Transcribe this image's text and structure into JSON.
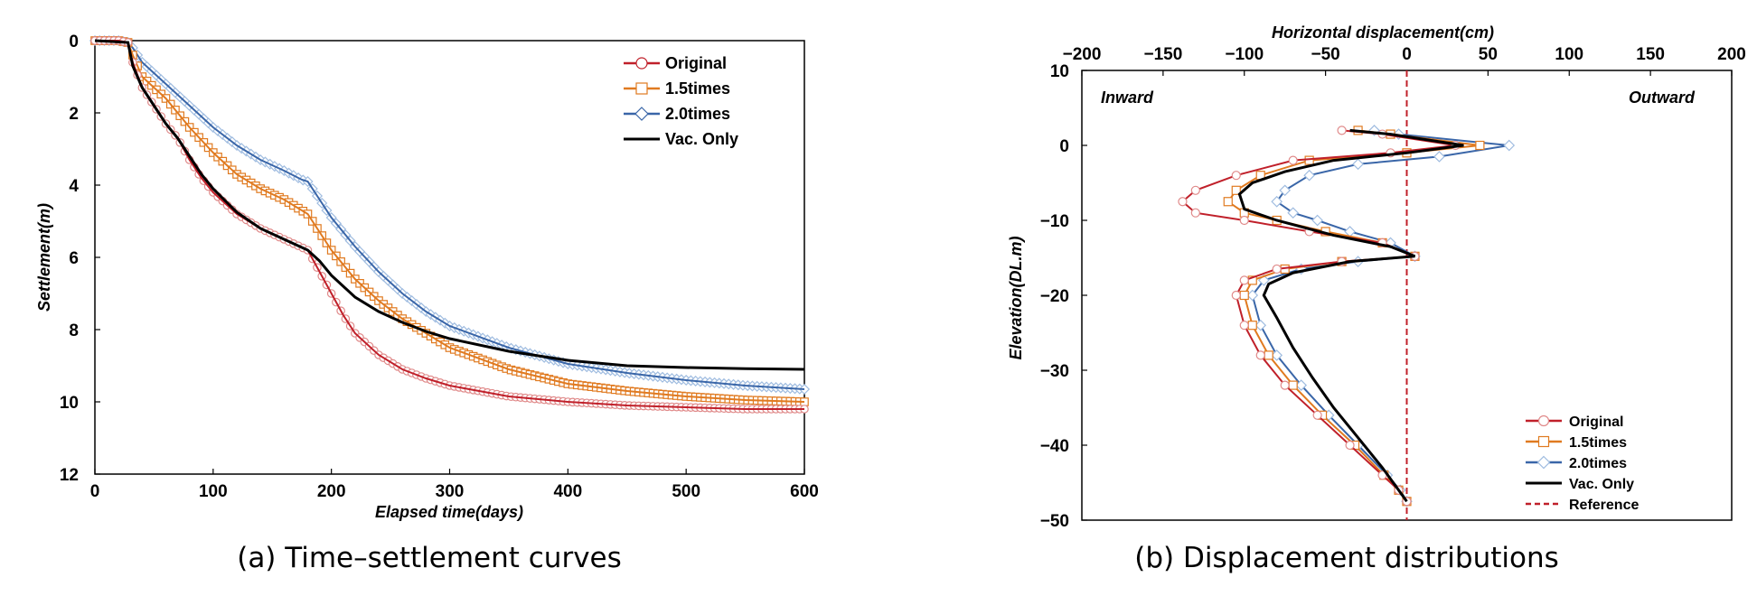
{
  "colors": {
    "original": "#c0202a",
    "original_marker": "#e08a8a",
    "times15": "#e07a20",
    "times20": "#3a66a8",
    "times20_marker": "#9fbce0",
    "vac_only": "#000000",
    "reference": "#c0202a",
    "note": "#e02020"
  },
  "captions": {
    "a": "(a) Time–settlement curves",
    "b": "(b) Displacement distributions"
  },
  "chart_data": [
    {
      "type": "line",
      "xlabel": "Elapsed time(days)",
      "ylabel": "Settlement(m)",
      "xlim": [
        0,
        600
      ],
      "ylim": [
        0,
        12
      ],
      "y_inverted": true,
      "xticks": [
        "0",
        "100",
        "200",
        "300",
        "400",
        "500",
        "600"
      ],
      "yticks": [
        "0",
        "2",
        "4",
        "6",
        "8",
        "10",
        "12"
      ],
      "grid": false,
      "legend_position": "top-right",
      "series": [
        {
          "name": "Original",
          "key": "original",
          "marker": "circle",
          "points": [
            [
              0,
              0
            ],
            [
              20,
              0
            ],
            [
              28,
              0.05
            ],
            [
              32,
              0.6
            ],
            [
              40,
              1.3
            ],
            [
              50,
              1.8
            ],
            [
              60,
              2.3
            ],
            [
              70,
              2.7
            ],
            [
              80,
              3.3
            ],
            [
              90,
              3.8
            ],
            [
              100,
              4.2
            ],
            [
              120,
              4.8
            ],
            [
              140,
              5.2
            ],
            [
              160,
              5.5
            ],
            [
              170,
              5.65
            ],
            [
              180,
              5.8
            ],
            [
              190,
              6.4
            ],
            [
              200,
              7.0
            ],
            [
              210,
              7.6
            ],
            [
              220,
              8.1
            ],
            [
              240,
              8.7
            ],
            [
              260,
              9.1
            ],
            [
              280,
              9.35
            ],
            [
              300,
              9.55
            ],
            [
              350,
              9.85
            ],
            [
              400,
              10.0
            ],
            [
              450,
              10.1
            ],
            [
              500,
              10.15
            ],
            [
              550,
              10.2
            ],
            [
              600,
              10.2
            ]
          ]
        },
        {
          "name": "1.5times",
          "key": "times15",
          "marker": "square",
          "points": [
            [
              0,
              0
            ],
            [
              20,
              0
            ],
            [
              28,
              0.05
            ],
            [
              32,
              0.4
            ],
            [
              40,
              1.0
            ],
            [
              50,
              1.3
            ],
            [
              60,
              1.6
            ],
            [
              70,
              2.0
            ],
            [
              80,
              2.4
            ],
            [
              100,
              3.1
            ],
            [
              120,
              3.7
            ],
            [
              140,
              4.1
            ],
            [
              160,
              4.4
            ],
            [
              180,
              4.8
            ],
            [
              190,
              5.3
            ],
            [
              200,
              5.8
            ],
            [
              220,
              6.6
            ],
            [
              240,
              7.2
            ],
            [
              260,
              7.7
            ],
            [
              280,
              8.1
            ],
            [
              300,
              8.5
            ],
            [
              350,
              9.1
            ],
            [
              400,
              9.5
            ],
            [
              450,
              9.7
            ],
            [
              500,
              9.85
            ],
            [
              550,
              9.95
            ],
            [
              600,
              10.0
            ]
          ]
        },
        {
          "name": "2.0times",
          "key": "times20",
          "marker": "diamond",
          "points": [
            [
              0,
              0
            ],
            [
              20,
              0
            ],
            [
              28,
              0.05
            ],
            [
              32,
              0.2
            ],
            [
              40,
              0.6
            ],
            [
              50,
              0.9
            ],
            [
              60,
              1.2
            ],
            [
              70,
              1.5
            ],
            [
              80,
              1.8
            ],
            [
              100,
              2.4
            ],
            [
              120,
              2.9
            ],
            [
              140,
              3.3
            ],
            [
              160,
              3.6
            ],
            [
              175,
              3.85
            ],
            [
              180,
              3.9
            ],
            [
              190,
              4.4
            ],
            [
              200,
              4.9
            ],
            [
              220,
              5.7
            ],
            [
              240,
              6.4
            ],
            [
              260,
              7.0
            ],
            [
              280,
              7.5
            ],
            [
              300,
              7.9
            ],
            [
              350,
              8.5
            ],
            [
              400,
              8.95
            ],
            [
              450,
              9.2
            ],
            [
              500,
              9.4
            ],
            [
              550,
              9.55
            ],
            [
              600,
              9.65
            ]
          ]
        },
        {
          "name": "Vac. Only",
          "key": "vac_only",
          "marker": "none",
          "points": [
            [
              0,
              0
            ],
            [
              28,
              0.05
            ],
            [
              32,
              0.7
            ],
            [
              40,
              1.3
            ],
            [
              50,
              1.8
            ],
            [
              60,
              2.3
            ],
            [
              70,
              2.7
            ],
            [
              80,
              3.2
            ],
            [
              90,
              3.7
            ],
            [
              100,
              4.1
            ],
            [
              120,
              4.75
            ],
            [
              140,
              5.2
            ],
            [
              160,
              5.5
            ],
            [
              180,
              5.8
            ],
            [
              190,
              6.1
            ],
            [
              200,
              6.5
            ],
            [
              220,
              7.1
            ],
            [
              240,
              7.5
            ],
            [
              260,
              7.8
            ],
            [
              280,
              8.05
            ],
            [
              300,
              8.25
            ],
            [
              350,
              8.6
            ],
            [
              400,
              8.85
            ],
            [
              450,
              9.0
            ],
            [
              500,
              9.05
            ],
            [
              550,
              9.08
            ],
            [
              600,
              9.1
            ]
          ]
        }
      ]
    },
    {
      "type": "line",
      "xlabel": "Horizontal displacement(cm)",
      "ylabel": "Elevation(DL.m)",
      "xlim": [
        -200,
        200
      ],
      "ylim": [
        -50,
        10
      ],
      "xaxis_position": "top",
      "xticks": [
        "−200",
        "−150",
        "−100",
        "−50",
        "0",
        "50",
        "100",
        "150",
        "200"
      ],
      "yticks": [
        "10",
        "0",
        "−10",
        "−20",
        "−30",
        "−40",
        "−50"
      ],
      "grid": false,
      "legend_position": "bottom-right",
      "annotations": [
        "Inward",
        "Outward"
      ],
      "series": [
        {
          "name": "Original",
          "key": "original",
          "marker": "circle",
          "points": [
            [
              -40,
              2
            ],
            [
              -15,
              1.5
            ],
            [
              30,
              0
            ],
            [
              -10,
              -1
            ],
            [
              -70,
              -2
            ],
            [
              -105,
              -4
            ],
            [
              -130,
              -6
            ],
            [
              -138,
              -7.5
            ],
            [
              -130,
              -9
            ],
            [
              -100,
              -10
            ],
            [
              -60,
              -11.5
            ],
            [
              -15,
              -13
            ],
            [
              5,
              -14.8
            ],
            [
              -40,
              -15.5
            ],
            [
              -80,
              -16.5
            ],
            [
              -100,
              -18
            ],
            [
              -105,
              -20
            ],
            [
              -100,
              -24
            ],
            [
              -90,
              -28
            ],
            [
              -75,
              -32
            ],
            [
              -55,
              -36
            ],
            [
              -35,
              -40
            ],
            [
              -15,
              -44
            ],
            [
              -5,
              -46
            ],
            [
              0,
              -47.5
            ]
          ]
        },
        {
          "name": "1.5times",
          "key": "times15",
          "marker": "square",
          "points": [
            [
              -30,
              2
            ],
            [
              -10,
              1.5
            ],
            [
              45,
              0
            ],
            [
              0,
              -1
            ],
            [
              -60,
              -2
            ],
            [
              -90,
              -4
            ],
            [
              -105,
              -6
            ],
            [
              -110,
              -7.5
            ],
            [
              -100,
              -9
            ],
            [
              -80,
              -10
            ],
            [
              -50,
              -11.5
            ],
            [
              -15,
              -13
            ],
            [
              5,
              -14.8
            ],
            [
              -40,
              -15.5
            ],
            [
              -75,
              -16.5
            ],
            [
              -95,
              -18
            ],
            [
              -100,
              -20
            ],
            [
              -95,
              -24
            ],
            [
              -85,
              -28
            ],
            [
              -70,
              -32
            ],
            [
              -52,
              -36
            ],
            [
              -32,
              -40
            ],
            [
              -14,
              -44
            ],
            [
              -5,
              -46
            ],
            [
              0,
              -47.5
            ]
          ]
        },
        {
          "name": "2.0times",
          "key": "times20",
          "marker": "diamond",
          "points": [
            [
              -20,
              2
            ],
            [
              -5,
              1.5
            ],
            [
              63,
              0
            ],
            [
              20,
              -1.5
            ],
            [
              -30,
              -2.5
            ],
            [
              -60,
              -4
            ],
            [
              -75,
              -6
            ],
            [
              -80,
              -7.5
            ],
            [
              -70,
              -9
            ],
            [
              -55,
              -10
            ],
            [
              -35,
              -11.5
            ],
            [
              -10,
              -13
            ],
            [
              5,
              -14.8
            ],
            [
              -30,
              -15.5
            ],
            [
              -65,
              -16.5
            ],
            [
              -88,
              -18
            ],
            [
              -95,
              -20
            ],
            [
              -90,
              -24
            ],
            [
              -80,
              -28
            ],
            [
              -65,
              -32
            ],
            [
              -48,
              -36
            ],
            [
              -30,
              -40
            ],
            [
              -12,
              -44
            ],
            [
              -4,
              -46
            ],
            [
              0,
              -47.5
            ]
          ]
        },
        {
          "name": "Vac. Only",
          "key": "vac_only",
          "marker": "none",
          "points": [
            [
              -35,
              2
            ],
            [
              -10,
              1.5
            ],
            [
              35,
              0
            ],
            [
              0,
              -1
            ],
            [
              -45,
              -2
            ],
            [
              -75,
              -3.5
            ],
            [
              -95,
              -5
            ],
            [
              -103,
              -6.5
            ],
            [
              -100,
              -8.5
            ],
            [
              -80,
              -10
            ],
            [
              -45,
              -12
            ],
            [
              -10,
              -13.5
            ],
            [
              5,
              -14.8
            ],
            [
              -35,
              -15.5
            ],
            [
              -70,
              -17
            ],
            [
              -85,
              -18.5
            ],
            [
              -88,
              -20
            ],
            [
              -80,
              -23
            ],
            [
              -70,
              -27
            ],
            [
              -58,
              -31
            ],
            [
              -45,
              -35
            ],
            [
              -30,
              -39
            ],
            [
              -15,
              -43
            ],
            [
              -5,
              -46
            ],
            [
              0,
              -47.5
            ]
          ]
        },
        {
          "name": "Reference",
          "key": "reference",
          "marker": "none",
          "dashed": true,
          "points": [
            [
              0,
              10
            ],
            [
              0,
              -50
            ]
          ]
        }
      ]
    }
  ]
}
